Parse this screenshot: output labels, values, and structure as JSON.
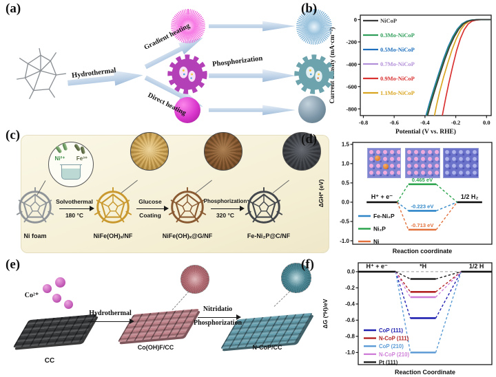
{
  "panels": {
    "a": {
      "label": "(a)",
      "hydrothermal": "Hydrothermal",
      "gradient_heating": "Gradient heating",
      "direct_heating": "Direct heating",
      "phosphorization": "Phosphorization"
    },
    "b": {
      "label": "(b)"
    },
    "c": {
      "label": "(c)",
      "ion_left": "Ni²⁺",
      "ion_right": "Fe³⁺",
      "materials": [
        "Ni foam",
        "NiFe(OH)ₓ/NF",
        "NiFe(OH)ₓ@G/NF",
        "Fe-Ni₂P@C/NF"
      ],
      "arrows": [
        {
          "line1": "Solvothermal",
          "line2": "180 °C"
        },
        {
          "line1": "Glucose",
          "line2": "Coating"
        },
        {
          "line1": "Phosphorization",
          "line2": "320 °C"
        }
      ]
    },
    "d": {
      "label": "(d)"
    },
    "e": {
      "label": "(e)",
      "ion": "Co²⁺",
      "arrow1": "Hydrothermal",
      "arrow2_line1": "Nitridatio",
      "arrow2_line2": "Phosphorization",
      "materials": [
        "CC",
        "Co(OH)F/CC",
        "N-CoP/CC"
      ]
    },
    "f": {
      "label": "(f)"
    }
  },
  "chart_data": [
    {
      "id": "b",
      "type": "line",
      "xlabel": "Potential (V vs. RHE)",
      "ylabel": "Current density (mA·cm⁻²)",
      "xlim": [
        -0.82,
        0.03
      ],
      "ylim": [
        -860,
        40
      ],
      "xticks": [
        -0.8,
        -0.6,
        -0.4,
        -0.2,
        0.0
      ],
      "yticks": [
        0,
        -200,
        -400,
        -600,
        -800
      ],
      "legend_position": "top-left",
      "series": [
        {
          "name": "NiCoP",
          "color": "#3a3a3a",
          "points": [
            [
              0.03,
              0
            ],
            [
              -0.05,
              0
            ],
            [
              -0.09,
              -4
            ],
            [
              -0.12,
              -14
            ],
            [
              -0.15,
              -38
            ],
            [
              -0.18,
              -85
            ],
            [
              -0.21,
              -155
            ],
            [
              -0.24,
              -245
            ],
            [
              -0.27,
              -355
            ],
            [
              -0.3,
              -480
            ],
            [
              -0.33,
              -610
            ],
            [
              -0.36,
              -745
            ],
            [
              -0.383,
              -860
            ]
          ]
        },
        {
          "name": "0.3Mo-NiCoP",
          "color": "#2f9e5a",
          "points": [
            [
              0.03,
              0
            ],
            [
              -0.055,
              0
            ],
            [
              -0.095,
              -4
            ],
            [
              -0.125,
              -14
            ],
            [
              -0.155,
              -38
            ],
            [
              -0.185,
              -85
            ],
            [
              -0.215,
              -155
            ],
            [
              -0.245,
              -245
            ],
            [
              -0.275,
              -355
            ],
            [
              -0.305,
              -480
            ],
            [
              -0.335,
              -610
            ],
            [
              -0.365,
              -745
            ],
            [
              -0.388,
              -860
            ]
          ]
        },
        {
          "name": "0.5Mo-NiCoP",
          "color": "#1d6fbd",
          "points": [
            [
              0.03,
              0
            ],
            [
              -0.06,
              0
            ],
            [
              -0.1,
              -4
            ],
            [
              -0.13,
              -14
            ],
            [
              -0.16,
              -38
            ],
            [
              -0.19,
              -85
            ],
            [
              -0.22,
              -155
            ],
            [
              -0.25,
              -245
            ],
            [
              -0.28,
              -355
            ],
            [
              -0.31,
              -480
            ],
            [
              -0.34,
              -610
            ],
            [
              -0.37,
              -745
            ],
            [
              -0.393,
              -860
            ]
          ]
        },
        {
          "name": "0.7Mo-NiCoP",
          "color": "#b28fd9",
          "points": [
            [
              0.03,
              0
            ],
            [
              -0.052,
              0
            ],
            [
              -0.092,
              -4
            ],
            [
              -0.122,
              -14
            ],
            [
              -0.152,
              -38
            ],
            [
              -0.182,
              -85
            ],
            [
              -0.212,
              -155
            ],
            [
              -0.242,
              -245
            ],
            [
              -0.272,
              -355
            ],
            [
              -0.302,
              -480
            ],
            [
              -0.332,
              -610
            ],
            [
              -0.362,
              -745
            ],
            [
              -0.385,
              -860
            ]
          ]
        },
        {
          "name": "0.9Mo-NiCoP",
          "color": "#d93030",
          "points": [
            [
              0.03,
              0
            ],
            [
              -0.03,
              0
            ],
            [
              -0.065,
              -4
            ],
            [
              -0.095,
              -14
            ],
            [
              -0.12,
              -40
            ],
            [
              -0.145,
              -90
            ],
            [
              -0.17,
              -170
            ],
            [
              -0.195,
              -280
            ],
            [
              -0.22,
              -420
            ],
            [
              -0.245,
              -570
            ],
            [
              -0.265,
              -700
            ],
            [
              -0.283,
              -830
            ],
            [
              -0.287,
              -860
            ]
          ]
        },
        {
          "name": "1.1Mo-NiCoP",
          "color": "#d9a521",
          "points": [
            [
              0.03,
              0
            ],
            [
              -0.045,
              0
            ],
            [
              -0.082,
              -4
            ],
            [
              -0.112,
              -14
            ],
            [
              -0.14,
              -40
            ],
            [
              -0.168,
              -92
            ],
            [
              -0.196,
              -170
            ],
            [
              -0.224,
              -270
            ],
            [
              -0.252,
              -390
            ],
            [
              -0.28,
              -520
            ],
            [
              -0.305,
              -650
            ],
            [
              -0.325,
              -770
            ],
            [
              -0.338,
              -860
            ]
          ]
        }
      ]
    },
    {
      "id": "d",
      "type": "energy-level",
      "xlabel": "Reaction coordinate",
      "ylabel": "ΔGH* (eV)",
      "ylim": [
        -1.09,
        1.55
      ],
      "yticks": [
        1.5,
        1.0,
        0.5,
        0.0,
        -0.5,
        -1.0
      ],
      "initial_label": "H⁺ + e⁻",
      "initial_value": 0,
      "final_label": "1/2 H₂",
      "final_value": 0,
      "intermediate_label": "H*",
      "series": [
        {
          "name": "Fe-Ni₂P",
          "color": "#2e86c8",
          "value": -0.223,
          "annotation": "-0.223 eV"
        },
        {
          "name": "Ni₂P",
          "color": "#2ca44e",
          "value": 0.465,
          "annotation": "0.465 eV"
        },
        {
          "name": "Ni",
          "color": "#e2703a",
          "value": -0.713,
          "annotation": "-0.713 eV"
        }
      ]
    },
    {
      "id": "f",
      "type": "energy-level",
      "xlabel": "Reaction Coordinate",
      "ylabel": "ΔG (*H)/eV",
      "ylim": [
        -1.15,
        0.11
      ],
      "yticks": [
        0.0,
        -0.2,
        -0.4,
        -0.6,
        -0.8,
        -1.0
      ],
      "initial_label": "H⁺ + e⁻",
      "initial_value": 0,
      "final_label": "1/2 H",
      "final_value": 0,
      "intermediate_label": "*H",
      "zero_line": true,
      "series": [
        {
          "name": "CoP (111)",
          "color": "#2020b0",
          "value": -0.575
        },
        {
          "name": "N-CoP (111)",
          "color": "#b22222",
          "value": -0.25
        },
        {
          "name": "CoP (210)",
          "color": "#5b9bd5",
          "value": -1.0
        },
        {
          "name": "N-CoP (210)",
          "color": "#cf7fd8",
          "value": -0.315
        },
        {
          "name": "Pt (111)",
          "color": "#1a1a1a",
          "value": -0.09
        }
      ]
    }
  ]
}
